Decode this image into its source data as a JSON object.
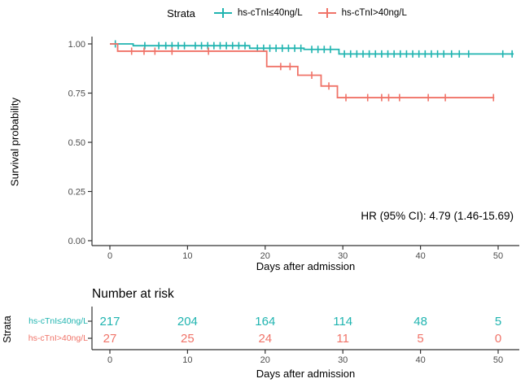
{
  "legend": {
    "title": "Strata",
    "items": [
      {
        "label": "hs-cTnI≤40ng/L",
        "color": "#20B4B0"
      },
      {
        "label": "hs-cTnI>40ng/L",
        "color": "#F07368"
      }
    ]
  },
  "hr_annotation": "HR (95% CI): 4.79 (1.46-15.69)",
  "risk_table": {
    "title": "Number at risk",
    "axis_label": "Strata",
    "rows": [
      {
        "label": "hs-cTnI≤40ng/L",
        "color": "#20B4B0",
        "values": [
          "217",
          "204",
          "164",
          "114",
          "48",
          "5"
        ]
      },
      {
        "label": "hs-cTnI>40ng/L",
        "color": "#F07368",
        "values": [
          "27",
          "25",
          "24",
          "11",
          "5",
          "0"
        ]
      }
    ]
  },
  "chart_data": {
    "type": "line",
    "subtype": "kaplan-meier-step",
    "title": "",
    "xlabel": "Days after admission",
    "ylabel": "Survival probability",
    "x_ticks": [
      "0",
      "10",
      "20",
      "30",
      "40",
      "50"
    ],
    "x_tick_values": [
      0,
      10,
      20,
      30,
      40,
      50
    ],
    "y_ticks": [
      "0.00",
      "0.25",
      "0.50",
      "0.75",
      "1.00"
    ],
    "y_tick_values": [
      0.0,
      0.25,
      0.5,
      0.75,
      1.0
    ],
    "xlim": [
      0,
      52.5
    ],
    "ylim": [
      0,
      1.0
    ],
    "grid": false,
    "legend_position": "top",
    "series": [
      {
        "name": "hs-cTnI≤40ng/L",
        "color": "#20B4B0",
        "steps": [
          [
            0,
            1.0
          ],
          [
            3,
            0.991
          ],
          [
            18,
            0.978
          ],
          [
            25,
            0.972
          ],
          [
            29.5,
            0.949
          ],
          [
            52,
            0.949
          ]
        ],
        "censor_days": [
          0.7,
          4.5,
          6.3,
          7.2,
          8.0,
          8.8,
          9.6,
          11.0,
          11.8,
          12.6,
          13.4,
          14.2,
          15.0,
          15.8,
          16.6,
          17.4,
          19.0,
          19.8,
          20.6,
          21.4,
          22.2,
          23.0,
          23.8,
          24.6,
          26.0,
          26.8,
          27.6,
          28.4,
          30.2,
          31.0,
          31.8,
          32.6,
          33.4,
          34.2,
          35.0,
          35.8,
          36.6,
          37.4,
          38.2,
          39.0,
          39.8,
          40.6,
          41.4,
          42.2,
          43.0,
          44.0,
          45.0,
          46.2,
          50.6,
          51.8
        ]
      },
      {
        "name": "hs-cTnI>40ng/L",
        "color": "#F07368",
        "steps": [
          [
            0,
            1.0
          ],
          [
            1,
            0.963
          ],
          [
            20.2,
            0.885
          ],
          [
            24.2,
            0.841
          ],
          [
            27.2,
            0.786
          ],
          [
            29.3,
            0.727
          ],
          [
            49.5,
            0.727
          ]
        ],
        "censor_days": [
          2.8,
          4.4,
          5.8,
          8.0,
          12.7,
          22.0,
          23.2,
          26.0,
          28.2,
          30.4,
          33.2,
          35.0,
          35.9,
          37.3,
          41.0,
          43.2,
          49.4
        ]
      }
    ]
  }
}
